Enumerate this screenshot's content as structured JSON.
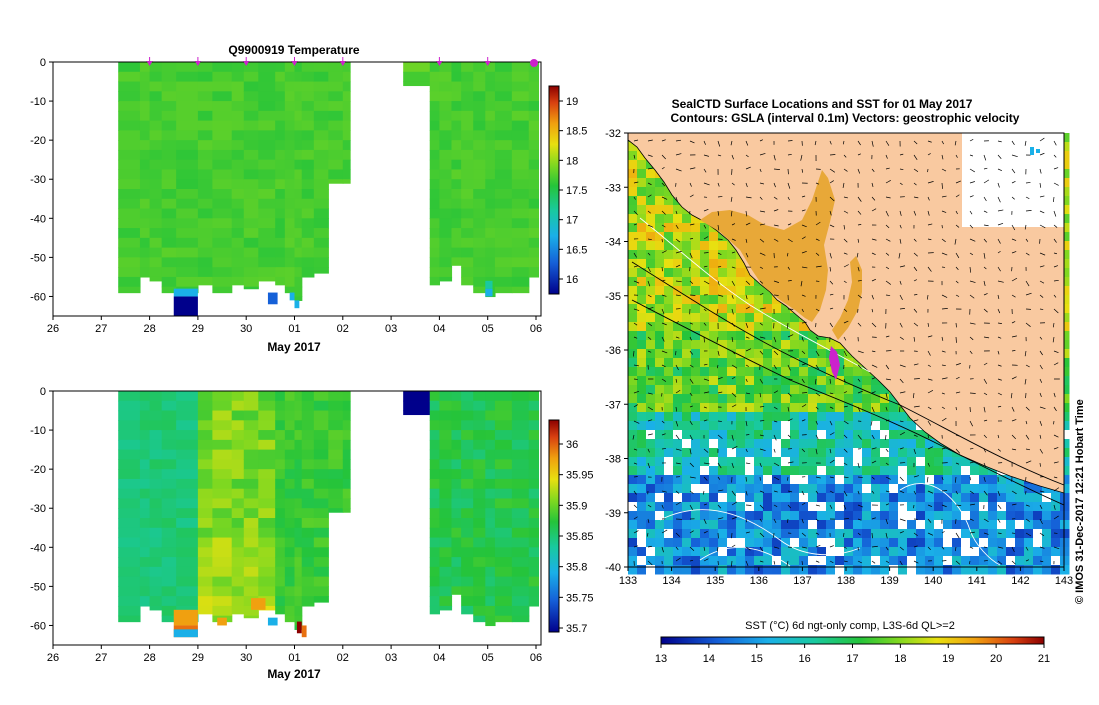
{
  "temperature_panel": {
    "title": "Q9900919  Temperature",
    "xlabel": "May 2017",
    "x_ticks": [
      "26",
      "27",
      "28",
      "29",
      "30",
      "01",
      "02",
      "03",
      "04",
      "05",
      "06"
    ],
    "y_ticks": [
      "0",
      "-10",
      "-20",
      "-30",
      "-40",
      "-50",
      "-60"
    ],
    "colorbar_ticks": [
      "19",
      "18.5",
      "18",
      "17.5",
      "17",
      "16.5",
      "16"
    ]
  },
  "salinity_panel": {
    "title": "",
    "xlabel": "May 2017",
    "x_ticks": [
      "26",
      "27",
      "28",
      "29",
      "30",
      "01",
      "02",
      "03",
      "04",
      "05",
      "06"
    ],
    "y_ticks": [
      "0",
      "-10",
      "-20",
      "-30",
      "-40",
      "-50",
      "-60"
    ],
    "colorbar_ticks": [
      "36",
      "35.95",
      "35.9",
      "35.85",
      "35.8",
      "35.75",
      "35.7"
    ]
  },
  "map_panel": {
    "title_line1": "SealCTD Surface Locations and SST for 01 May 2017",
    "title_line2": "Contours: GSLA (interval 0.1m) Vectors: geostrophic velocity",
    "x_ticks": [
      "133",
      "134",
      "135",
      "136",
      "137",
      "138",
      "139",
      "140",
      "141",
      "142",
      "143"
    ],
    "y_ticks": [
      "-32",
      "-33",
      "-34",
      "-35",
      "-36",
      "-37",
      "-38",
      "-39",
      "-40"
    ],
    "credit": "© IMOS 31-Dec-2017 12:21 Hobart Time",
    "colorbar_label": "SST (°C) 6d ngt-only comp, L3S-6d QL>=2",
    "colorbar_ticks": [
      "13",
      "14",
      "15",
      "16",
      "17",
      "18",
      "19",
      "20",
      "21"
    ]
  },
  "colors": {
    "land": "#f9c9a0",
    "missing": "#ffffff",
    "profile_marker": "#cc22cc"
  },
  "chart_data": [
    {
      "type": "heatmap",
      "title": "Q9900919  Temperature",
      "xlabel": "May 2017",
      "ylabel": "",
      "xlim": [
        "26 Apr 2017",
        "06 May 2017"
      ],
      "ylim": [
        -65,
        0
      ],
      "colorbar_range": [
        15.75,
        19.25
      ],
      "values_description": "Temperature (°C), mostly 17.3-17.8 throughout upper 60 m",
      "profiles": [
        {
          "date": "27.35",
          "value": 17.5,
          "depth": -59
        },
        {
          "date": "28.55",
          "value": 17.6,
          "depth": -59
        },
        {
          "date": "29.0",
          "value": 17.4,
          "depth": -59
        },
        {
          "date": "29.45",
          "value": 17.6,
          "depth": -57
        },
        {
          "date": "29.9",
          "value": 17.7,
          "depth": -57
        },
        {
          "date": "30.4",
          "value": 17.6,
          "depth": -58
        },
        {
          "date": "01.0",
          "value": 17.6,
          "depth": -59
        },
        {
          "date": "01.5",
          "value": 17.5,
          "depth": -57
        },
        {
          "date": "02.0",
          "value": 17.6,
          "depth": -31
        },
        {
          "date": "03.3",
          "value": 17.5,
          "depth": -6
        },
        {
          "date": "04.0",
          "value": 17.4,
          "depth": -57
        },
        {
          "date": "04.9",
          "value": 17.4,
          "depth": -60
        },
        {
          "date": "05.5",
          "value": 17.5,
          "depth": -59
        }
      ]
    },
    {
      "type": "heatmap",
      "title": "",
      "xlabel": "May 2017",
      "ylabel": "",
      "xlim": [
        "26 Apr 2017",
        "06 May 2017"
      ],
      "ylim": [
        -65,
        0
      ],
      "colorbar_range": [
        35.685,
        36.035
      ],
      "values_description": "Salinity, mostly 35.82-35.92 throughout upper 60 m"
    },
    {
      "type": "heatmap",
      "title": "SealCTD Surface Locations and SST for 01 May 2017",
      "xlim": [
        133,
        143
      ],
      "ylim": [
        -40,
        -32
      ],
      "colorbar_range": [
        13,
        21
      ]
    }
  ]
}
